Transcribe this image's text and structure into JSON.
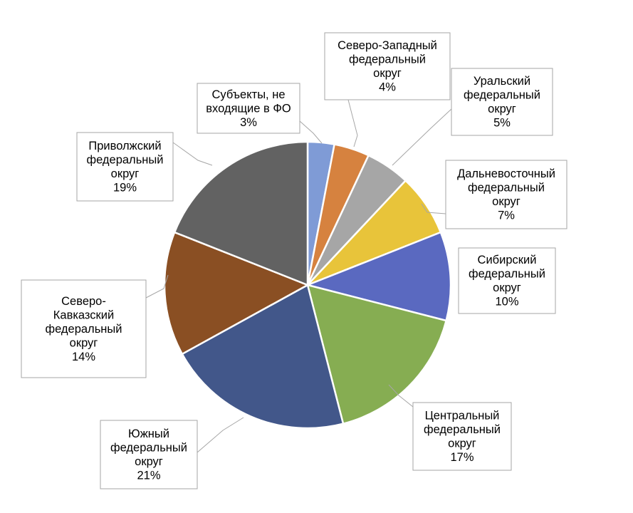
{
  "chart_data": {
    "type": "pie",
    "title": "",
    "categories": [
      "Субъекты, не входящие в ФО",
      "Северо-Западный федеральный округ",
      "Уральский федеральный округ",
      "Дальневосточный федеральный округ",
      "Сибирский федеральный округ",
      "Центральный федеральный округ",
      "Южный федеральный округ",
      "Северо-Кавказский федеральный округ",
      "Приволжский федеральный округ"
    ],
    "values": [
      3,
      4,
      5,
      7,
      10,
      17,
      21,
      14,
      19
    ],
    "value_labels": [
      "3%",
      "4%",
      "5%",
      "7%",
      "10%",
      "17%",
      "21%",
      "14%",
      "19%"
    ],
    "colors": [
      "#7f9bd6",
      "#d6823f",
      "#a6a6a6",
      "#e8c43a",
      "#5a69c0",
      "#86ad52",
      "#42578a",
      "#8a4f23",
      "#626262"
    ],
    "label_lines": [
      [
        "Субъекты, не",
        "входящие в ФО"
      ],
      [
        "Северо-Западный",
        "федеральный",
        "округ"
      ],
      [
        "Уральский",
        "федеральный",
        "округ"
      ],
      [
        "Дальневосточный",
        "федеральный",
        "округ"
      ],
      [
        "Сибирский",
        "федеральный",
        "округ"
      ],
      [
        "Центральный",
        "федеральный",
        "округ"
      ],
      [
        "Южный",
        "федеральный",
        "округ"
      ],
      [
        "Северо-",
        "Кавказский",
        "федеральный",
        "округ"
      ],
      [
        "Приволжский",
        "федеральный",
        "округ"
      ]
    ],
    "legend": "none"
  }
}
